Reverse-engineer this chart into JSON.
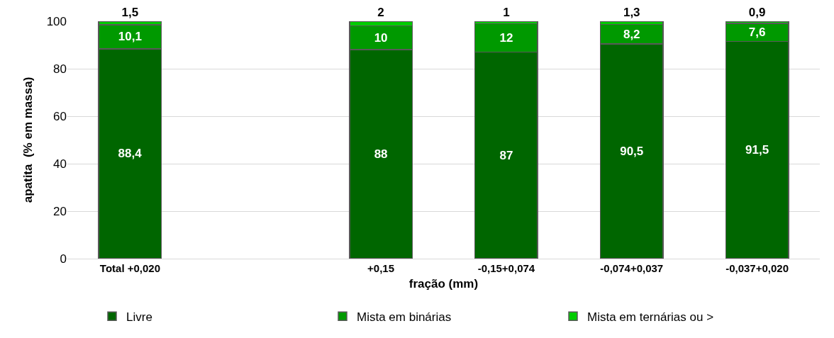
{
  "chart_data": {
    "type": "bar",
    "stacked": true,
    "xlabel": "fração (mm)",
    "ylabel": "apatita  (% em massa)",
    "categories": [
      "Total +0,020",
      null,
      "+0,15",
      "-0,15+0,074",
      "-0,074+0,037",
      "-0,037+0,020"
    ],
    "series": [
      {
        "name": "Livre",
        "color": "#006600",
        "values": [
          88.4,
          null,
          88,
          87,
          90.5,
          91.5
        ],
        "value_labels": [
          "88,4",
          null,
          "88",
          "87",
          "90,5",
          "91,5"
        ]
      },
      {
        "name": "Mista em binárias",
        "color": "#009900",
        "values": [
          10.1,
          null,
          10,
          12,
          8.2,
          7.6
        ],
        "value_labels": [
          "10,1",
          null,
          "10",
          "12",
          "8,2",
          "7,6"
        ]
      },
      {
        "name": "Mista em ternárias ou >",
        "color": "#00cc00",
        "values": [
          1.5,
          null,
          2,
          1,
          1.3,
          0.9
        ],
        "value_labels": [
          "1,5",
          null,
          "2",
          "1",
          "1,3",
          "0,9"
        ]
      }
    ],
    "ylim": [
      0,
      100
    ],
    "yticks": [
      0,
      20,
      40,
      60,
      80,
      100
    ],
    "grid": "y",
    "legend": "bottom"
  }
}
